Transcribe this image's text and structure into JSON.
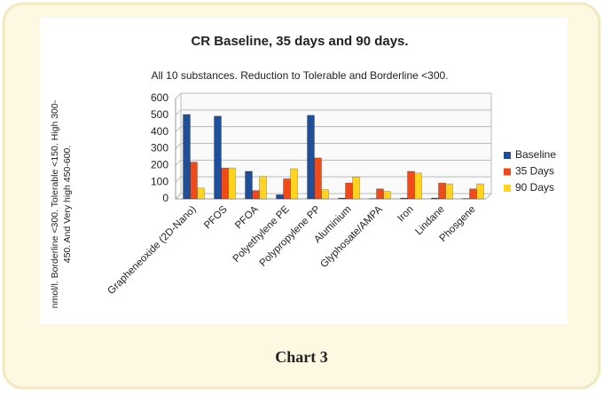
{
  "chart_data": {
    "type": "bar",
    "title": "CR Baseline, 35 days and 90 days.",
    "subtitle": "All 10 substances. Reduction to Tolerable and Borderline <300.",
    "ylabel": [
      "nmol/l. Borderline <300. Tolerable <150. High 300-",
      "450. And Very high 450-600."
    ],
    "categories": [
      "Grapheneoxide (2D-Nano)",
      "PFOS",
      "PFOA",
      "Polyethylene PE",
      "Polypropylene PP",
      "Aluminium",
      "Glyphosate/AMPA",
      "Iron",
      "Lindane",
      "Phosgene"
    ],
    "series": [
      {
        "name": "Baseline",
        "color": "#1f4e9a",
        "values": [
          505,
          495,
          165,
          25,
          500,
          5,
          2,
          5,
          5,
          2
        ]
      },
      {
        "name": "35 Days",
        "color": "#f04a1a",
        "values": [
          220,
          185,
          50,
          120,
          245,
          95,
          60,
          165,
          95,
          60
        ]
      },
      {
        "name": "90 Days",
        "color": "#ffd320",
        "values": [
          65,
          185,
          135,
          180,
          55,
          130,
          45,
          155,
          90,
          90
        ]
      }
    ],
    "ylim": [
      0,
      600
    ],
    "yticks": [
      0,
      100,
      200,
      300,
      400,
      500,
      600
    ],
    "grid": true,
    "legend": "right"
  },
  "caption": "Chart 3"
}
